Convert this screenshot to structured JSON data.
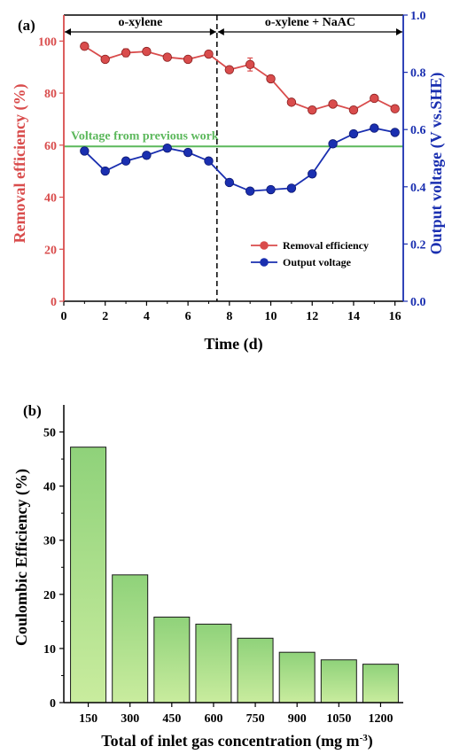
{
  "colors": {
    "removal": "#d94c4c",
    "voltage": "#1a2fb0",
    "green_line": "#5cb85c",
    "bar_top": "#8fd27a",
    "bar_bottom": "#c9ec9e"
  },
  "chart_data": [
    {
      "type": "line",
      "panel_label": "(a)",
      "xlabel": "Time (d)",
      "ylabel_left": "Removal efficiency (%)",
      "ylabel_right": "Output voltage (V vs.SHE)",
      "xlim": [
        0,
        16.4
      ],
      "ylim_left": [
        0,
        110
      ],
      "ylim_right": [
        0,
        1.0
      ],
      "x_ticks": [
        0,
        2,
        4,
        6,
        8,
        10,
        12,
        14,
        16
      ],
      "y_ticks_left": [
        0,
        20,
        40,
        60,
        80,
        100
      ],
      "y_ticks_right": [
        0.0,
        0.2,
        0.4,
        0.6,
        0.8,
        1.0
      ],
      "grid": false,
      "legend_position": "lower-right",
      "regions": [
        {
          "label": "o-xylene",
          "from": 0,
          "to": 7.4
        },
        {
          "label": "o-xylene + NaAC",
          "from": 7.4,
          "to": 16.4
        }
      ],
      "divider_x": 7.4,
      "reference_line": {
        "label": "Voltage from previous work",
        "y_left": 59.5
      },
      "series": [
        {
          "name": "Removal efficiency",
          "axis": "left",
          "x": [
            1,
            2,
            3,
            4,
            5,
            6,
            7,
            8,
            9,
            10,
            11,
            12,
            13,
            14,
            15,
            16
          ],
          "y": [
            98.0,
            93.0,
            95.5,
            96.0,
            93.8,
            93.0,
            95.0,
            89.0,
            91.0,
            85.5,
            76.5,
            73.5,
            75.8,
            73.5,
            78.0,
            74.0
          ],
          "err": [
            0.8,
            0.5,
            1.5,
            0.5,
            0.5,
            0.5,
            1.0,
            0.8,
            2.5,
            1.0,
            0.5,
            0.5,
            0.5,
            0.5,
            1.0,
            0.5
          ]
        },
        {
          "name": "Output voltage",
          "axis": "right",
          "x": [
            1,
            2,
            3,
            4,
            5,
            6,
            7,
            8,
            9,
            10,
            11,
            12,
            13,
            14,
            15,
            16
          ],
          "y": [
            0.525,
            0.455,
            0.49,
            0.51,
            0.535,
            0.52,
            0.49,
            0.415,
            0.385,
            0.39,
            0.395,
            0.445,
            0.55,
            0.585,
            0.605,
            0.59
          ]
        }
      ]
    },
    {
      "type": "bar",
      "panel_label": "(b)",
      "xlabel_main": "Total of inlet gas concentration (mg m",
      "xlabel_sup": "-3",
      "xlabel_end": ")",
      "ylabel": "Coulombic Efficiency (%)",
      "ylim": [
        0,
        55
      ],
      "y_ticks": [
        0,
        10,
        20,
        30,
        40,
        50
      ],
      "grid": false,
      "categories": [
        "150",
        "300",
        "450",
        "600",
        "750",
        "900",
        "1050",
        "1200"
      ],
      "values": [
        47.2,
        23.6,
        15.8,
        14.5,
        11.9,
        9.3,
        7.9,
        7.1
      ]
    }
  ]
}
